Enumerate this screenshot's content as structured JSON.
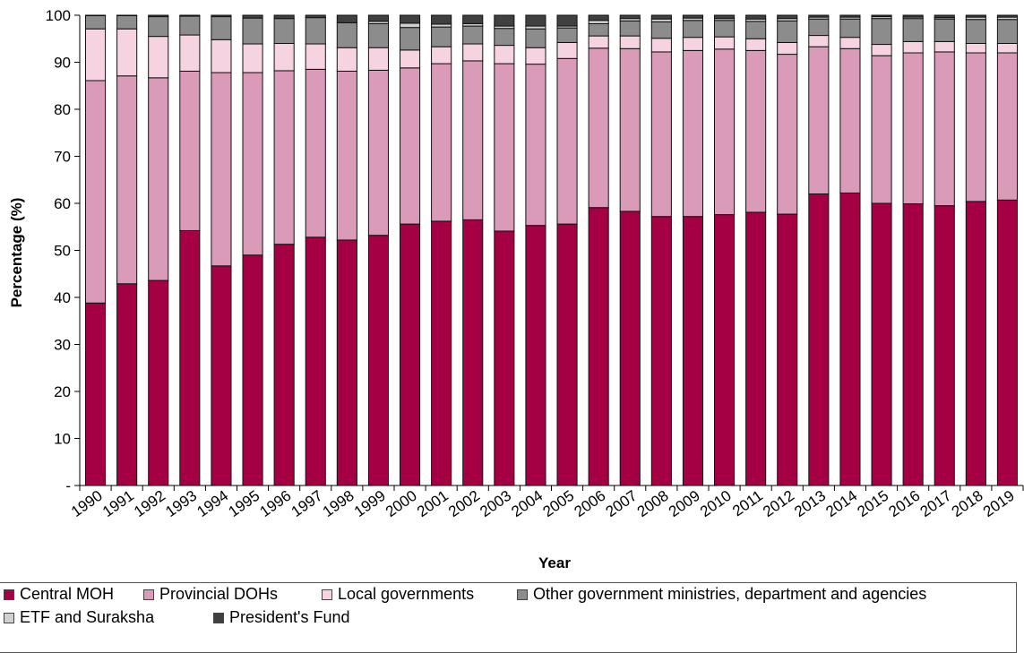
{
  "chart_data": {
    "type": "bar",
    "stacked": true,
    "xlabel": "Year",
    "ylabel": "Percentage (%)",
    "ylim": [
      0,
      100
    ],
    "yticks": [
      "-",
      "10",
      "20",
      "30",
      "40",
      "50",
      "60",
      "70",
      "80",
      "90",
      "100"
    ],
    "grid": false,
    "legend_position": "bottom",
    "categories": [
      "1990",
      "1991",
      "1992",
      "1993",
      "1994",
      "1995",
      "1996",
      "1997",
      "1998",
      "1999",
      "2000",
      "2001",
      "2002",
      "2003",
      "2004",
      "2005",
      "2006",
      "2007",
      "2008",
      "2009",
      "2010",
      "2011",
      "2012",
      "2013",
      "2014",
      "2015",
      "2016",
      "2017",
      "2018",
      "2019"
    ],
    "series": [
      {
        "name": "Central MOH",
        "color": "#a50044",
        "values": [
          38.8,
          42.9,
          43.6,
          54.2,
          46.7,
          49.0,
          51.3,
          52.8,
          52.2,
          53.2,
          55.6,
          56.2,
          56.5,
          54.1,
          55.3,
          55.6,
          59.1,
          58.3,
          57.2,
          57.2,
          57.6,
          58.1,
          57.7,
          62.0,
          62.2,
          60.0,
          59.9,
          59.5,
          60.4,
          60.7
        ]
      },
      {
        "name": "Provincial DOHs",
        "color": "#d99bb8",
        "values": [
          47.3,
          44.2,
          43.1,
          33.9,
          41.1,
          38.8,
          36.9,
          35.7,
          35.9,
          35.1,
          33.2,
          33.5,
          33.8,
          35.6,
          34.3,
          35.2,
          33.9,
          34.6,
          35.0,
          35.3,
          35.2,
          34.4,
          34.0,
          31.3,
          30.7,
          31.4,
          32.1,
          32.7,
          31.6,
          31.3
        ]
      },
      {
        "name": "Local governments",
        "color": "#f5d3e0",
        "values": [
          11.0,
          10.0,
          8.8,
          7.7,
          7.0,
          6.1,
          5.8,
          5.4,
          5.0,
          4.8,
          3.8,
          3.6,
          3.6,
          3.9,
          3.5,
          3.4,
          2.6,
          2.7,
          2.9,
          2.8,
          2.6,
          2.5,
          2.5,
          2.4,
          2.4,
          2.4,
          2.4,
          2.2,
          2.0,
          2.0
        ]
      },
      {
        "name": "Other government ministries, department and agencies",
        "color": "#8c8c8c",
        "values": [
          2.8,
          2.8,
          4.2,
          4.0,
          4.9,
          5.5,
          5.3,
          5.6,
          5.3,
          5.1,
          4.8,
          4.2,
          3.8,
          3.6,
          4.0,
          3.1,
          2.6,
          3.2,
          3.5,
          3.6,
          3.5,
          3.7,
          4.6,
          3.5,
          3.9,
          5.5,
          4.9,
          4.8,
          5.1,
          5.1
        ]
      },
      {
        "name": "ETF and Suraksha",
        "color": "#d0d0d0",
        "values": [
          0,
          0,
          0,
          0,
          0,
          0,
          0,
          0,
          0,
          0.5,
          0.9,
          0.6,
          0.5,
          0.5,
          0.6,
          0.4,
          0.7,
          0.5,
          0.6,
          0.5,
          0.4,
          0.5,
          0.5,
          0.4,
          0.4,
          0.4,
          0.3,
          0.3,
          0.5,
          0.5
        ]
      },
      {
        "name": "President's Fund",
        "color": "#404040",
        "values": [
          0.1,
          0.1,
          0.3,
          0.2,
          0.3,
          0.6,
          0.7,
          0.5,
          1.6,
          1.3,
          1.7,
          1.9,
          1.8,
          2.3,
          2.3,
          2.3,
          1.1,
          0.7,
          0.8,
          0.6,
          0.7,
          0.8,
          0.7,
          0.4,
          0.4,
          0.3,
          0.4,
          0.5,
          0.4,
          0.4
        ]
      }
    ]
  }
}
